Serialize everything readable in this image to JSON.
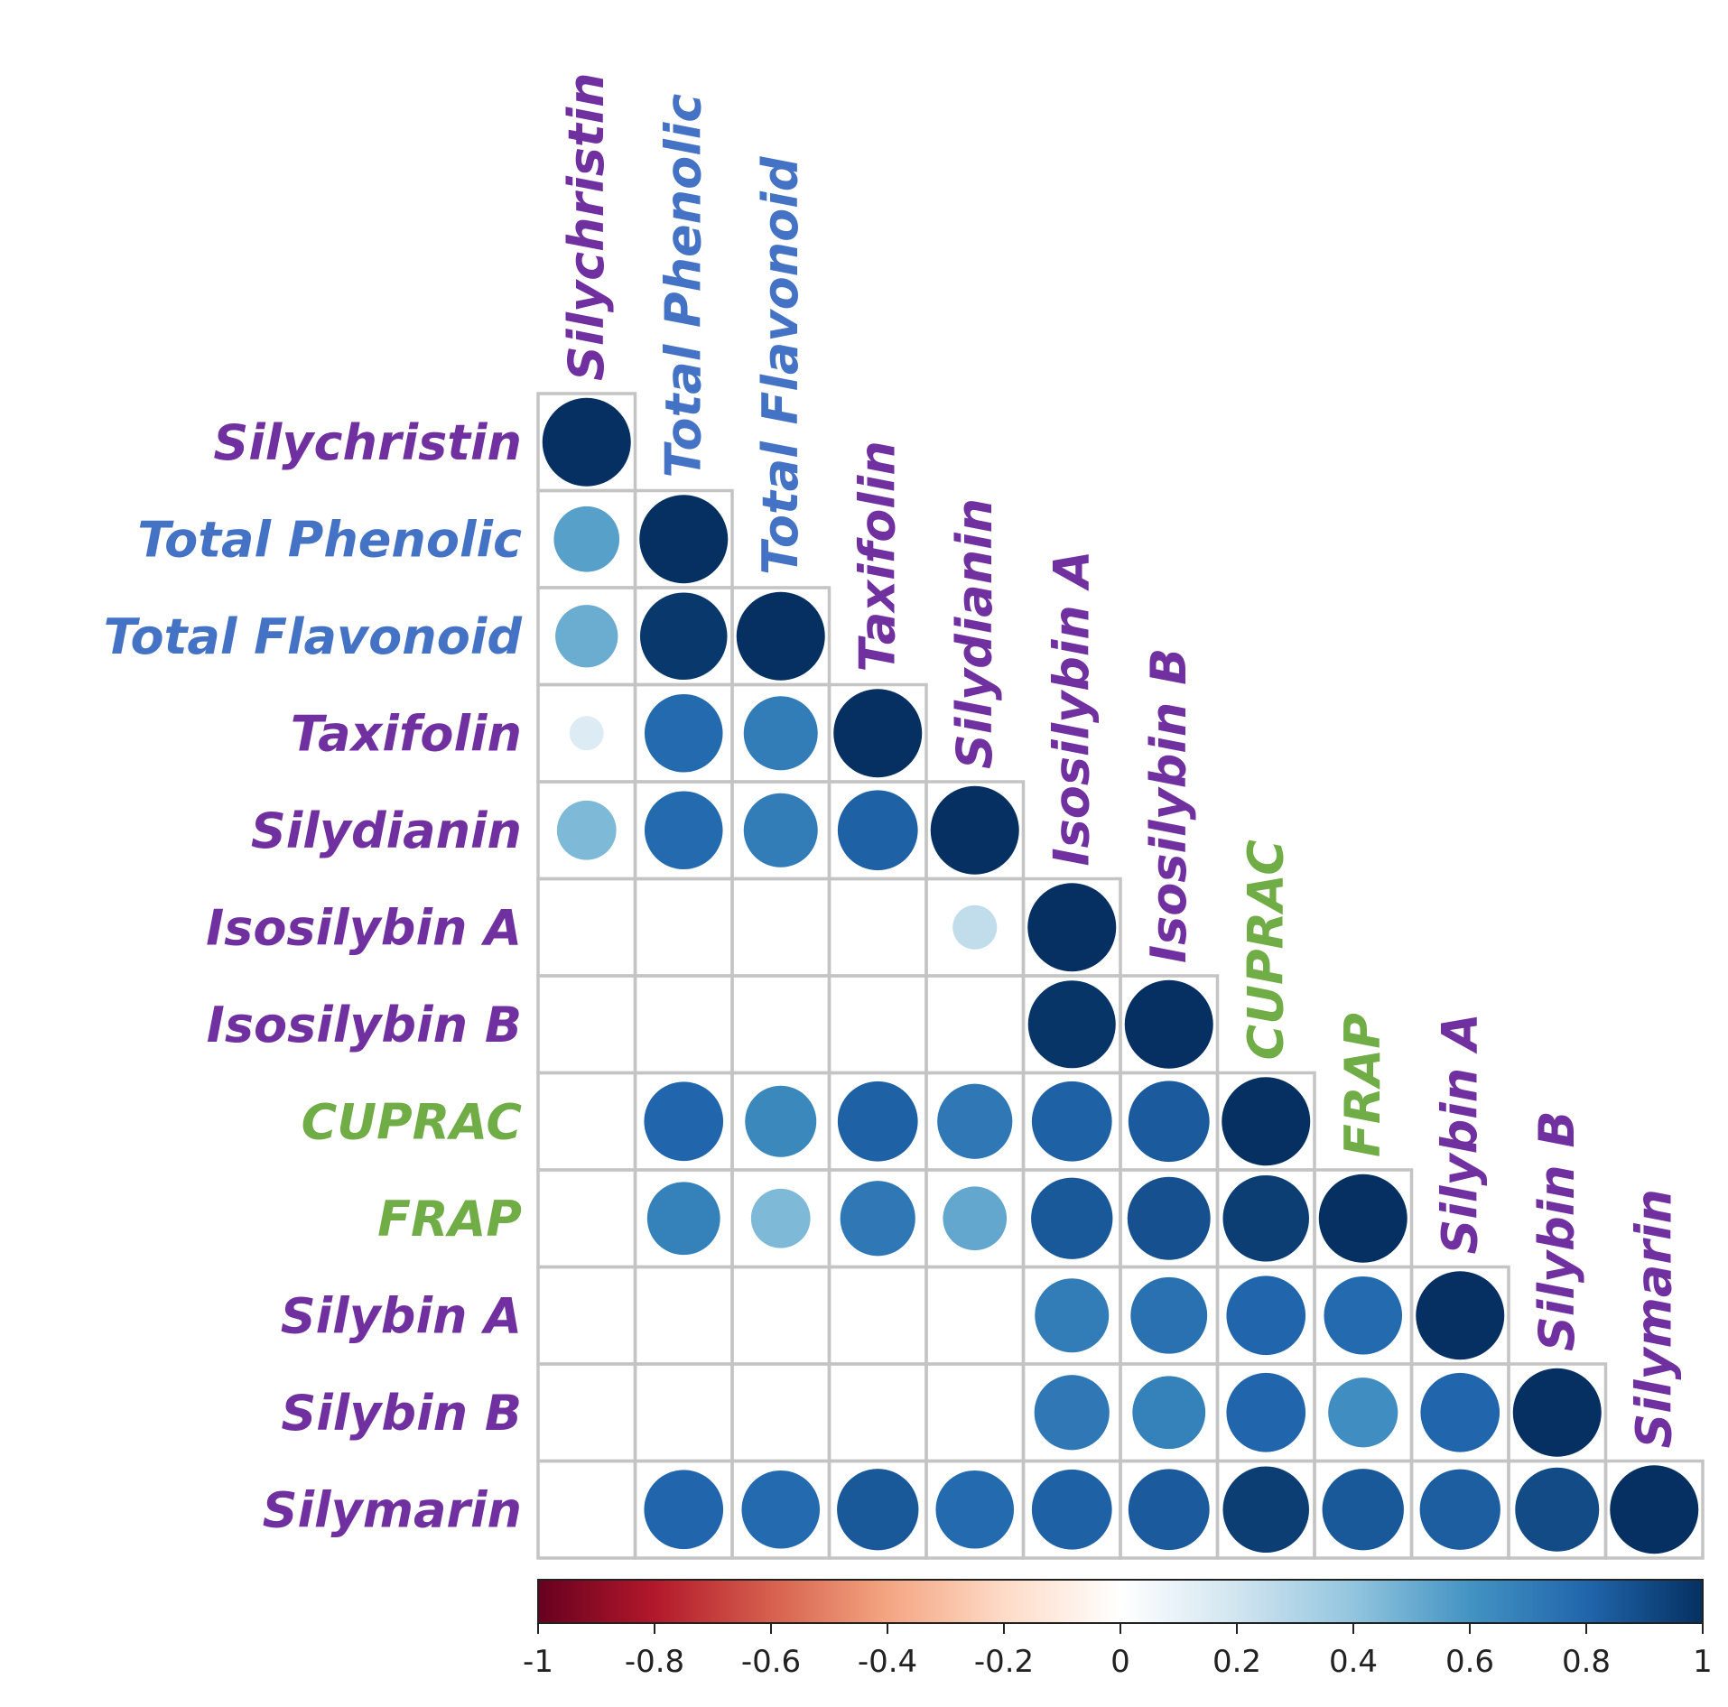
{
  "chart_data": {
    "type": "heatmap",
    "style": "correlation-circles-lower-triangle",
    "title": "",
    "variables": [
      "Silychristin",
      "Total Phenolic",
      "Total Flavonoid",
      "Taxifolin",
      "Silydianin",
      "Isosilybin A",
      "Isosilybin B",
      "CUPRAC",
      "FRAP",
      "Silybin A",
      "Silybin B",
      "Silymarin"
    ],
    "variable_groups": [
      "compound",
      "assay-total",
      "assay-total",
      "compound",
      "compound",
      "compound",
      "compound",
      "antioxidant",
      "antioxidant",
      "compound",
      "compound",
      "compound"
    ],
    "group_colors": {
      "compound": "#7030a0",
      "assay-total": "#4472c4",
      "antioxidant": "#70ad47"
    },
    "matrix": [
      [
        1.0
      ],
      [
        0.55,
        1.0
      ],
      [
        0.5,
        0.97,
        1.0
      ],
      [
        0.15,
        0.78,
        0.7,
        1.0
      ],
      [
        0.45,
        0.78,
        0.7,
        0.82,
        1.0
      ],
      [
        null,
        null,
        null,
        null,
        0.25,
        1.0
      ],
      [
        null,
        null,
        null,
        null,
        null,
        0.98,
        1.0
      ],
      [
        null,
        0.8,
        0.65,
        0.82,
        0.72,
        0.82,
        0.84,
        1.0
      ],
      [
        null,
        0.68,
        0.45,
        0.72,
        0.52,
        0.85,
        0.88,
        0.95,
        1.0
      ],
      [
        null,
        null,
        null,
        null,
        null,
        0.7,
        0.75,
        0.8,
        0.78,
        1.0
      ],
      [
        null,
        null,
        null,
        null,
        null,
        0.72,
        0.68,
        0.8,
        0.62,
        0.8,
        1.0
      ],
      [
        null,
        0.8,
        0.78,
        0.85,
        0.78,
        0.82,
        0.84,
        0.95,
        0.85,
        0.83,
        0.9,
        1.0
      ]
    ],
    "colorbar": {
      "min": -1,
      "max": 1,
      "ticks": [
        "-1",
        "-0.8",
        "-0.6",
        "-0.4",
        "-0.2",
        "0",
        "0.2",
        "0.4",
        "0.6",
        "0.8",
        "1"
      ],
      "colors": [
        "#67001f",
        "#b2182b",
        "#d6604d",
        "#f4a582",
        "#fddbc7",
        "#ffffff",
        "#d1e5f0",
        "#92c5de",
        "#4393c3",
        "#2166ac",
        "#053061"
      ]
    }
  }
}
